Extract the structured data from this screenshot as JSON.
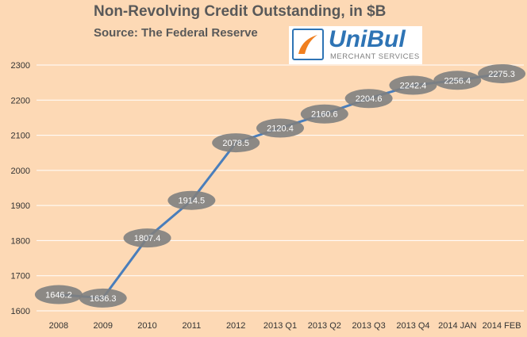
{
  "chart_data": {
    "type": "line",
    "title": "Non-Revolving Credit Outstanding, in $B",
    "subtitle": "Source: The Federal Reserve",
    "categories": [
      "2008",
      "2009",
      "2010",
      "2011",
      "2012",
      "2013 Q1",
      "2013 Q2",
      "2013 Q3",
      "2013 Q4",
      "2014 JAN",
      "2014 FEB"
    ],
    "series": [
      {
        "values": [
          1646.2,
          1636.3,
          1807.4,
          1914.5,
          2078.5,
          2120.4,
          2160.6,
          2204.6,
          2242.4,
          2256.4,
          2275.3
        ]
      }
    ],
    "ylim": [
      1600,
      2300
    ],
    "yticks": [
      1600,
      1700,
      1800,
      1900,
      2000,
      2100,
      2200,
      2300
    ],
    "grid": true,
    "data_labels": true,
    "colors": {
      "line": "#4a7ebb",
      "marker": "#7f7f7f",
      "background": "#fdd9b5",
      "grid": "#ffffff"
    }
  },
  "logo": {
    "word": "UniBul",
    "tagline": "MERCHANT SERVICES"
  }
}
